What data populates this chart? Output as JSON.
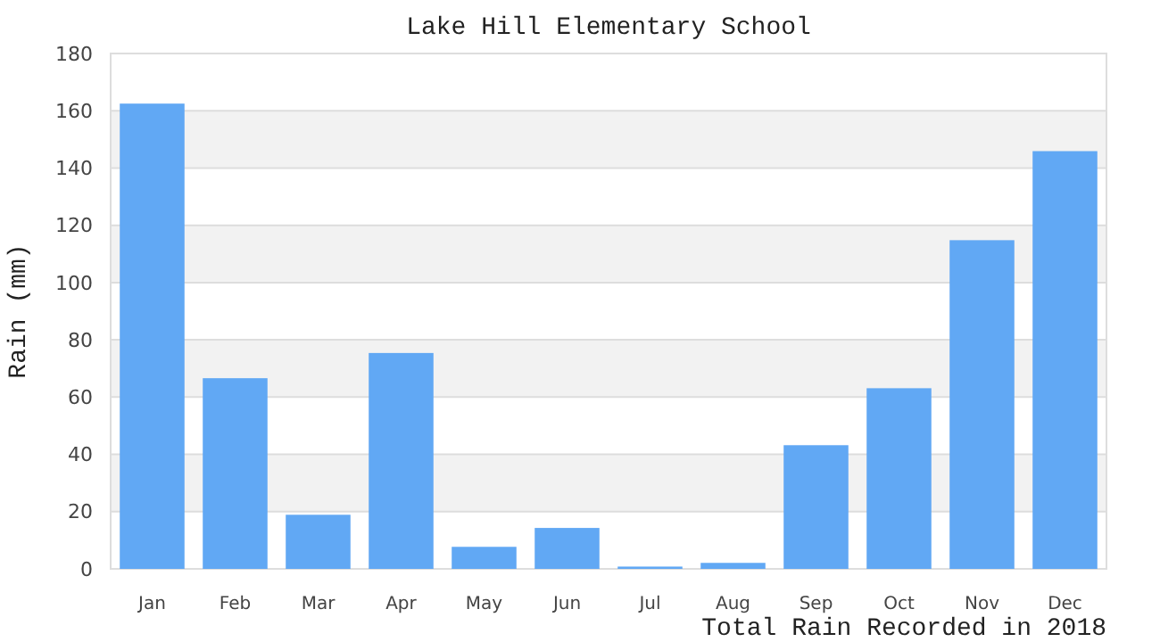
{
  "chart_data": {
    "type": "bar",
    "title": "Lake Hill Elementary School",
    "xlabel": "Total Rain Recorded in 2018",
    "ylabel": "Rain (mm)",
    "categories": [
      "Jan",
      "Feb",
      "Mar",
      "Apr",
      "May",
      "Jun",
      "Jul",
      "Aug",
      "Sep",
      "Oct",
      "Nov",
      "Dec"
    ],
    "values": [
      162.5,
      66.6,
      18.9,
      75.4,
      7.7,
      14.3,
      0.8,
      2.1,
      43.2,
      63.1,
      114.8,
      145.9
    ],
    "color": "#61a8f4",
    "ylim": [
      0,
      180
    ],
    "yticks": [
      0,
      20,
      40,
      60,
      80,
      100,
      120,
      140,
      160,
      180
    ],
    "grid": "y"
  }
}
